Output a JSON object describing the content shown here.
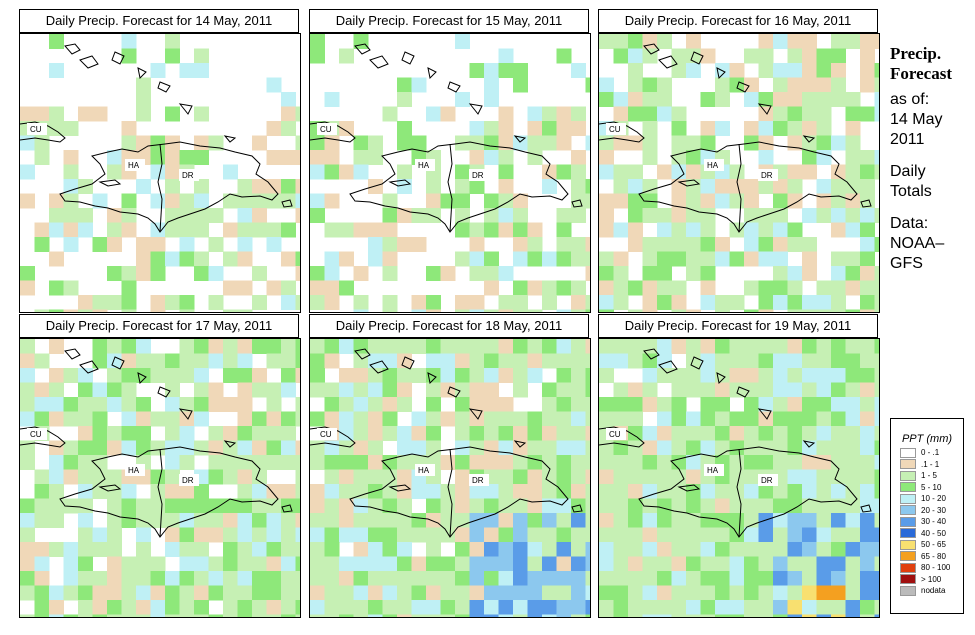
{
  "panels": [
    {
      "title": "Daily Precip. Forecast for  14 May, 2011",
      "labels": {
        "cu": "CU",
        "ha": "HA",
        "dr": "DR"
      }
    },
    {
      "title": "Daily Precip. Forecast for  15 May, 2011",
      "labels": {
        "cu": "CU",
        "ha": "HA",
        "dr": "DR"
      }
    },
    {
      "title": "Daily Precip. Forecast for  16 May, 2011",
      "labels": {
        "cu": "CU",
        "ha": "HA",
        "dr": "DR"
      }
    },
    {
      "title": "Daily Precip. Forecast for  17 May, 2011",
      "labels": {
        "cu": "CU",
        "ha": "HA",
        "dr": "DR"
      }
    },
    {
      "title": "Daily Precip. Forecast for  18 May, 2011",
      "labels": {
        "cu": "CU",
        "ha": "HA",
        "dr": "DR"
      }
    },
    {
      "title": "Daily Precip. Forecast for  19 May, 2011",
      "labels": {
        "cu": "CU",
        "ha": "HA",
        "dr": "DR"
      }
    }
  ],
  "side": {
    "line1": "Precip.",
    "line2": "Forecast",
    "line3": "as of:",
    "line4": "14 May",
    "line5": "2011",
    "line6": "Daily",
    "line7": "Totals",
    "line8": "Data:",
    "line9": "NOAA–",
    "line10": "GFS"
  },
  "legend": {
    "title": "PPT (mm)",
    "items": [
      {
        "label": "0 - .1",
        "color": "#ffffff"
      },
      {
        "label": ".1 - 1",
        "color": "#f0d8b8"
      },
      {
        "label": "1 - 5",
        "color": "#c6f0b4"
      },
      {
        "label": "5 - 10",
        "color": "#8ee87a"
      },
      {
        "label": "10 - 20",
        "color": "#bff0f5"
      },
      {
        "label": "20 - 30",
        "color": "#8cc8ee"
      },
      {
        "label": "30 - 40",
        "color": "#5a9ce8"
      },
      {
        "label": "40 - 50",
        "color": "#2a6ad8"
      },
      {
        "label": "50 - 65",
        "color": "#f8e070"
      },
      {
        "label": "65 - 80",
        "color": "#f4a020"
      },
      {
        "label": "80 - 100",
        "color": "#e04010"
      },
      {
        "label": "> 100",
        "color": "#a01010"
      },
      {
        "label": "nodata",
        "color": "#bbbbbb"
      }
    ]
  }
}
